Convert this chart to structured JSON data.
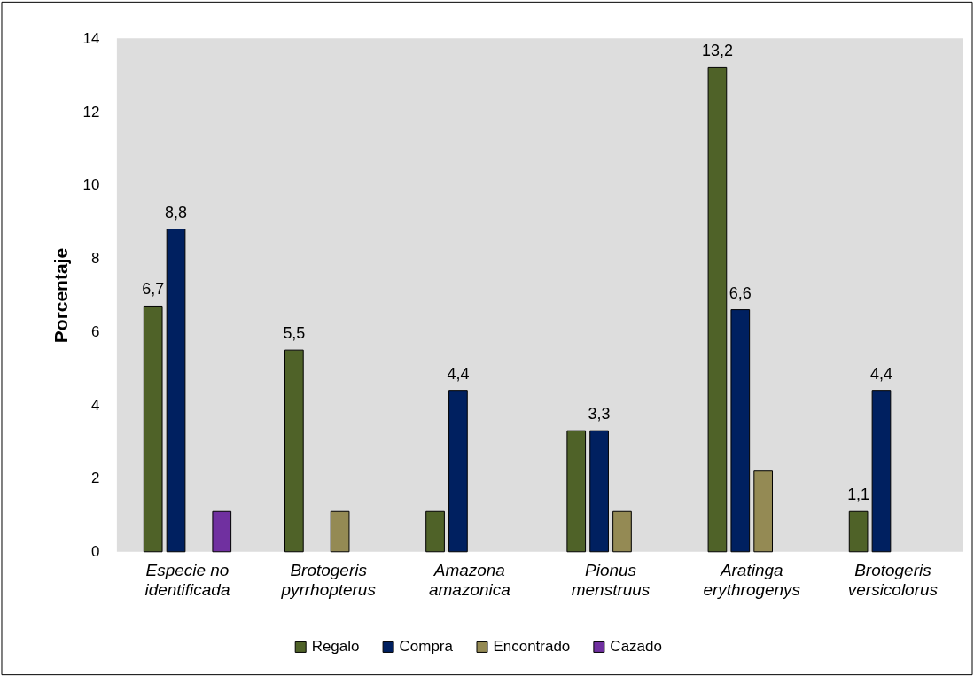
{
  "chart_data": {
    "type": "bar",
    "ylabel": "Porcentaje",
    "categories": [
      "Especie no identificada",
      "Brotogeris pyrrhopterus",
      "Amazona amazonica",
      "Pionus menstruus",
      "Aratinga erythrogenys",
      "Brotogeris versicolorus"
    ],
    "series": [
      {
        "name": "Regalo",
        "color": "#4f6228",
        "values": [
          6.7,
          5.5,
          1.1,
          3.3,
          13.2,
          1.1
        ],
        "value_labels": [
          "6,7",
          "5,5",
          null,
          null,
          "13,2",
          "1,1"
        ]
      },
      {
        "name": "Compra",
        "color": "#002060",
        "values": [
          8.8,
          null,
          4.4,
          3.3,
          6.6,
          4.4
        ],
        "value_labels": [
          "8,8",
          null,
          "4,4",
          "3,3",
          "6,6",
          "4,4"
        ]
      },
      {
        "name": "Encontrado",
        "color": "#948a54",
        "values": [
          null,
          1.1,
          null,
          1.1,
          2.2,
          null
        ]
      },
      {
        "name": "Cazado",
        "color": "#7030a0",
        "values": [
          1.1,
          null,
          null,
          null,
          null,
          null
        ]
      }
    ],
    "ylim": [
      0,
      14
    ],
    "yticks": [
      0,
      2,
      4,
      6,
      8,
      10,
      12,
      14
    ],
    "legend": "bottom"
  }
}
